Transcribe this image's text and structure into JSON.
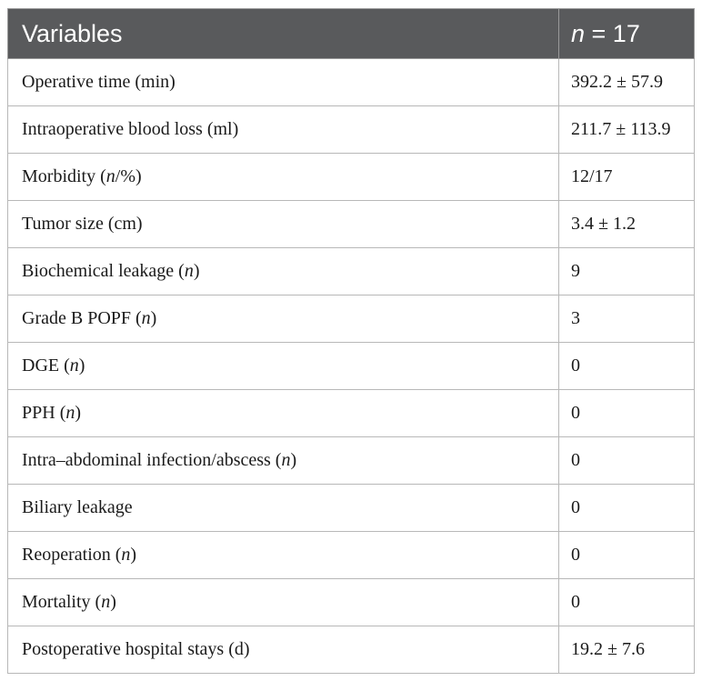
{
  "header": {
    "col1": "Variables",
    "col2_var": "n",
    "col2_rest": " = 17"
  },
  "rows": [
    {
      "pre": "Operative time (min)",
      "it": "",
      "post": "",
      "value": "392.2 ± 57.9"
    },
    {
      "pre": "Intraoperative blood loss (ml)",
      "it": "",
      "post": "",
      "value": "211.7 ± 113.9"
    },
    {
      "pre": "Morbidity (",
      "it": "n",
      "post": "/%)",
      "value": "12/17"
    },
    {
      "pre": "Tumor size (cm)",
      "it": "",
      "post": "",
      "value": "3.4 ± 1.2"
    },
    {
      "pre": "Biochemical leakage (",
      "it": "n",
      "post": ")",
      "value": "9"
    },
    {
      "pre": "Grade B POPF (",
      "it": "n",
      "post": ")",
      "value": "3"
    },
    {
      "pre": "DGE (",
      "it": "n",
      "post": ")",
      "value": "0"
    },
    {
      "pre": "PPH (",
      "it": "n",
      "post": ")",
      "value": "0"
    },
    {
      "pre": "Intra–abdominal infection/abscess (",
      "it": "n",
      "post": ")",
      "value": "0"
    },
    {
      "pre": "Biliary leakage",
      "it": "",
      "post": "",
      "value": "0"
    },
    {
      "pre": "Reoperation (",
      "it": "n",
      "post": ")",
      "value": "0"
    },
    {
      "pre": "Mortality (",
      "it": "n",
      "post": ")",
      "value": "0"
    },
    {
      "pre": "Postoperative hospital stays (d)",
      "it": "",
      "post": "",
      "value": "19.2 ± 7.6"
    }
  ]
}
